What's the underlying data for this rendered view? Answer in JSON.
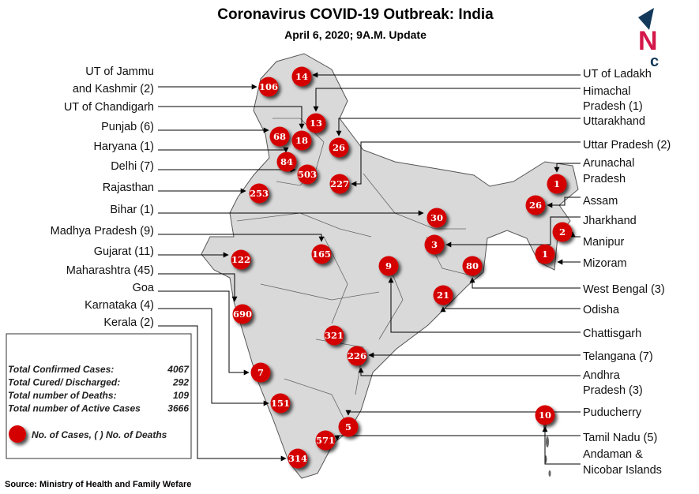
{
  "header": {
    "title": "Coronavirus COVID-19 Outbreak: India",
    "subtitle": "April 6, 2020; 9A.M. Update"
  },
  "logo": {
    "text": "NC",
    "colors": {
      "arrow": "#13395a",
      "n": "#d4174a",
      "c": "#13395a"
    }
  },
  "colors": {
    "marker": "#d40000",
    "map_fill": "#d9d9d9",
    "map_border": "#555555",
    "lines": "#000000"
  },
  "left_labels": [
    "UT of Jammu",
    "and Kashmir (2)",
    "UT of Chandigarh",
    "Punjab (6)",
    "Haryana (1)",
    "Delhi (7)",
    "Rajasthan",
    "Bihar (1)",
    "Madhya Pradesh (9)",
    "Gujarat (11)",
    "Maharashtra (45)",
    "Goa",
    "Karnataka (4)",
    "Kerala (2)"
  ],
  "right_labels": [
    "UT of Ladakh",
    "Himachal",
    "Pradesh (1)",
    "Uttarakhand",
    "Uttar Pradesh (2)",
    "Arunachal",
    "Pradesh",
    "Assam",
    "Jharkhand",
    "Manipur",
    "Mizoram",
    "West Bengal (3)",
    "Odisha",
    "Chattisgarh",
    "Telangana (7)",
    "Andhra",
    "Pradesh (3)",
    "Puducherry",
    "Tamil Nadu (5)",
    "Andaman &",
    "Nicobar Islands"
  ],
  "markers": [
    {
      "region": "Jammu and Kashmir",
      "cases": "106"
    },
    {
      "region": "Ladakh",
      "cases": "14"
    },
    {
      "region": "Himachal Pradesh",
      "cases": "13"
    },
    {
      "region": "Punjab",
      "cases": "68"
    },
    {
      "region": "Chandigarh",
      "cases": "18"
    },
    {
      "region": "Uttarakhand",
      "cases": "26"
    },
    {
      "region": "Haryana",
      "cases": "84"
    },
    {
      "region": "Delhi",
      "cases": "503"
    },
    {
      "region": "Uttar Pradesh",
      "cases": "227"
    },
    {
      "region": "Rajasthan",
      "cases": "253"
    },
    {
      "region": "Bihar",
      "cases": "30"
    },
    {
      "region": "Arunachal Pradesh",
      "cases": "1"
    },
    {
      "region": "Assam",
      "cases": "26"
    },
    {
      "region": "Manipur",
      "cases": "2"
    },
    {
      "region": "Mizoram",
      "cases": "1"
    },
    {
      "region": "Jharkhand",
      "cases": "3"
    },
    {
      "region": "Madhya Pradesh",
      "cases": "165"
    },
    {
      "region": "Gujarat",
      "cases": "122"
    },
    {
      "region": "Chattisgarh",
      "cases": "9"
    },
    {
      "region": "West Bengal",
      "cases": "80"
    },
    {
      "region": "Odisha",
      "cases": "21"
    },
    {
      "region": "Maharashtra",
      "cases": "690"
    },
    {
      "region": "Telangana",
      "cases": "321"
    },
    {
      "region": "Andhra Pradesh",
      "cases": "226"
    },
    {
      "region": "Goa",
      "cases": "7"
    },
    {
      "region": "Karnataka",
      "cases": "151"
    },
    {
      "region": "Puducherry",
      "cases": "5"
    },
    {
      "region": "Andaman & Nicobar Islands",
      "cases": "10"
    },
    {
      "region": "Tamil Nadu",
      "cases": "571"
    },
    {
      "region": "Kerala",
      "cases": "314"
    }
  ],
  "summary": {
    "rows": [
      {
        "label": "Total Confirmed Cases:",
        "value": "4067"
      },
      {
        "label": "Total Cured/ Discharged:",
        "value": "292"
      },
      {
        "label": "Total number of Deaths:",
        "value": "109"
      },
      {
        "label": "Total number of Active  Cases",
        "value": "3666"
      }
    ],
    "legend": "No. of Cases, ( ) No. of  Deaths"
  },
  "source": "Source: Ministry of Health and Family Wefare"
}
